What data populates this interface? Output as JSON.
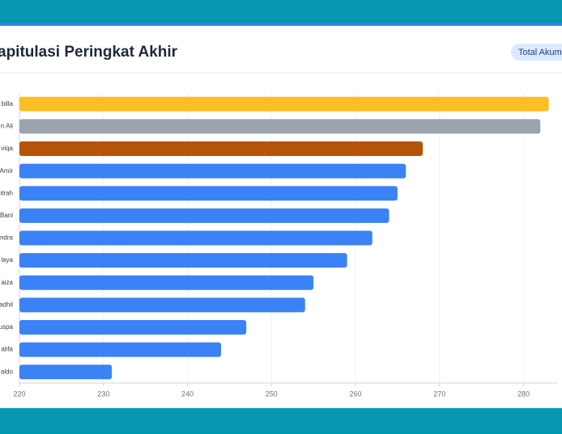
{
  "chart_data": {
    "type": "barh",
    "title": "apitulasi Peringkat Akhir",
    "badge": "Total Akum",
    "categories": [
      "billa",
      "n Ali",
      "viqa",
      "Amir",
      "itrah",
      "Bani",
      "ndra",
      "laya",
      "aiza",
      "adhil",
      "uspa",
      "alifa",
      "aldo"
    ],
    "values": [
      283,
      282,
      268,
      266,
      265,
      264,
      262,
      259,
      255,
      254,
      247,
      244,
      231
    ],
    "colors": [
      "#fbbf24",
      "#9ca3af",
      "#b45309",
      "#3b82f6",
      "#3b82f6",
      "#3b82f6",
      "#3b82f6",
      "#3b82f6",
      "#3b82f6",
      "#3b82f6",
      "#3b82f6",
      "#3b82f6",
      "#3b82f6"
    ],
    "xlim": [
      220,
      284
    ],
    "xticks": [
      220,
      230,
      240,
      250,
      260,
      270,
      280
    ],
    "grid": true
  }
}
